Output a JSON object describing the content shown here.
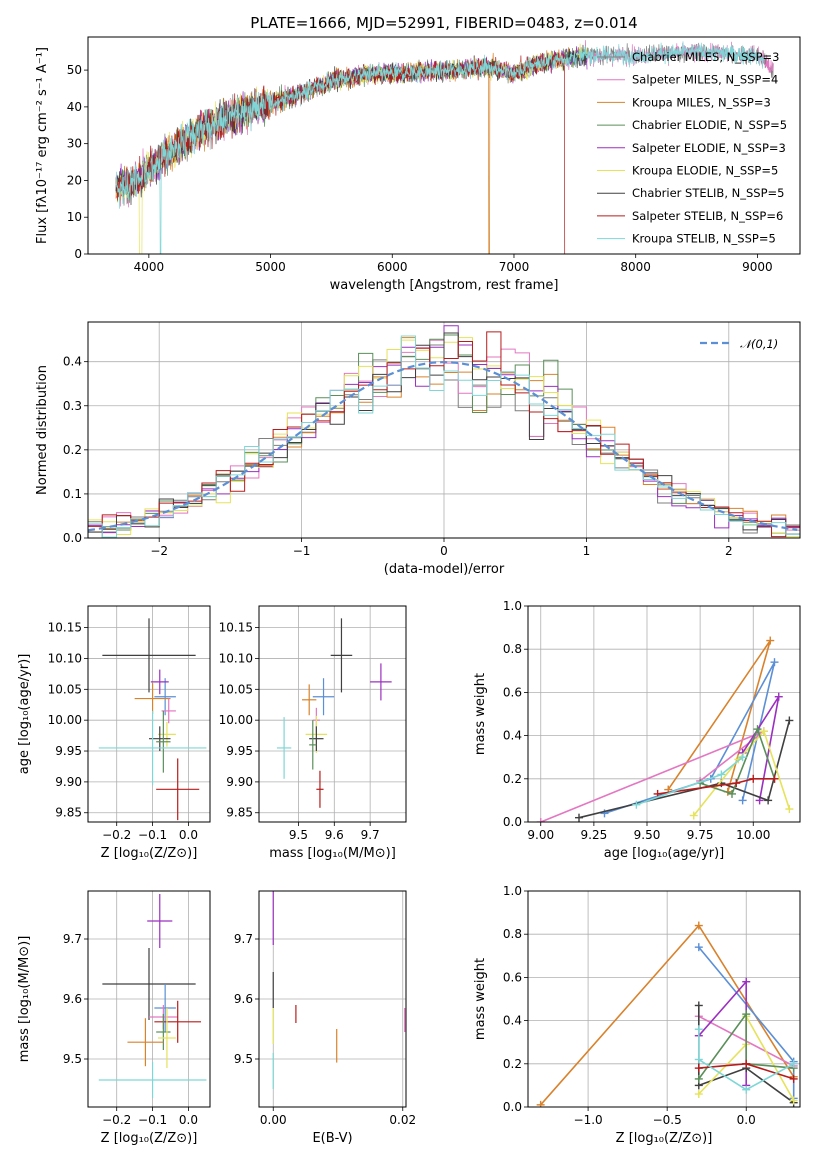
{
  "colors": [
    "#7f7f7f",
    "#e377c2",
    "#d9822b",
    "#5a8f5a",
    "#9b30c0",
    "#e6e35a",
    "#404040",
    "#b71c1c",
    "#7fd6d6"
  ],
  "gauss_color": "#5b8fd6",
  "chart_data": [
    {
      "id": "spectrum",
      "type": "line",
      "title": "PLATE=1666, MJD=52991, FIBERID=0483, z=0.014",
      "xlabel": "wavelength [Angstrom, rest frame]",
      "ylabel": "Flux [fλ10⁻¹⁷ erg cm⁻² s⁻¹ A⁻¹]",
      "xlim": [
        3500,
        9350
      ],
      "ylim": [
        0,
        59
      ],
      "xticks": [
        4000,
        5000,
        6000,
        7000,
        8000,
        9000
      ],
      "yticks": [
        0,
        10,
        20,
        30,
        40,
        50
      ],
      "grid": false,
      "legend": "top-right",
      "continuum_anchors": {
        "x": [
          3730,
          3900,
          4100,
          4400,
          4700,
          5000,
          5200,
          5500,
          5800,
          6000,
          6500,
          6800,
          7000,
          7200,
          7400,
          7600,
          8000,
          8500,
          9000,
          9130
        ],
        "y": [
          18,
          20,
          26,
          33,
          38,
          41,
          43,
          47,
          49,
          49,
          50,
          51,
          49,
          52,
          53,
          54,
          54,
          55,
          54,
          50
        ]
      },
      "series": [
        {
          "name": "Chabrier MILES, N_SSP=3"
        },
        {
          "name": "Salpeter MILES, N_SSP=4"
        },
        {
          "name": "Kroupa MILES, N_SSP=3"
        },
        {
          "name": "Chabrier ELODIE, N_SSP=5"
        },
        {
          "name": "Salpeter ELODIE, N_SSP=3"
        },
        {
          "name": "Kroupa ELODIE, N_SSP=5"
        },
        {
          "name": "Chabrier STELIB, N_SSP=5"
        },
        {
          "name": "Salpeter STELIB, N_SSP=6"
        },
        {
          "name": "Kroupa STELIB, N_SSP=5"
        }
      ]
    },
    {
      "id": "residuals",
      "type": "histogram",
      "xlabel": "(data-model)/error",
      "ylabel": "Normed distribution",
      "xlim": [
        -2.5,
        2.5
      ],
      "ylim": [
        0,
        0.49
      ],
      "xticks": [
        -2,
        -1,
        0,
        1,
        2
      ],
      "yticks": [
        0.0,
        0.1,
        0.2,
        0.3,
        0.4
      ],
      "grid": true,
      "legend": "top-right",
      "reference_label": "𝒩(0,1)",
      "bin_width": 0.1
    },
    {
      "id": "age_vs_Z",
      "type": "scatter",
      "xlabel": "Z [log₁₀(Z/Z⊙)]",
      "ylabel": "age  [log₁₀(age/yr)]",
      "xlim": [
        -0.28,
        0.06
      ],
      "ylim": [
        9.835,
        10.185
      ],
      "xticks": [
        -0.2,
        -0.1,
        0.0
      ],
      "yticks": [
        9.85,
        9.9,
        9.95,
        10.0,
        10.05,
        10.1,
        10.15
      ],
      "grid": true,
      "points": [
        {
          "x": -0.065,
          "y": 10.038,
          "xerr": 0.03,
          "yerr": 0.03,
          "color": "#5b8fd6"
        },
        {
          "x": -0.08,
          "y": 10.062,
          "xerr": 0.025,
          "yerr": 0.02,
          "color": "#9b30c0"
        },
        {
          "x": -0.1,
          "y": 10.035,
          "xerr": 0.05,
          "yerr": 0.025,
          "color": "#d9822b"
        },
        {
          "x": -0.055,
          "y": 10.015,
          "xerr": 0.02,
          "yerr": 0.02,
          "color": "#e377c2"
        },
        {
          "x": -0.06,
          "y": 9.977,
          "xerr": 0.025,
          "yerr": 0.02,
          "color": "#e6e35a"
        },
        {
          "x": -0.08,
          "y": 9.97,
          "xerr": 0.03,
          "yerr": 0.02,
          "color": "#404040"
        },
        {
          "x": -0.07,
          "y": 9.965,
          "xerr": 0.02,
          "yerr": 0.05,
          "color": "#5a8f5a"
        },
        {
          "x": -0.1,
          "y": 9.955,
          "xerr": 0.15,
          "yerr": 0.06,
          "color": "#7fd6d6"
        },
        {
          "x": -0.11,
          "y": 10.105,
          "xerr": 0.13,
          "yerr": 0.06,
          "color": "#404040"
        },
        {
          "x": -0.03,
          "y": 9.888,
          "xerr": 0.06,
          "yerr": 0.05,
          "color": "#b71c1c"
        }
      ]
    },
    {
      "id": "age_vs_mass",
      "type": "scatter",
      "xlabel": "mass [log₁₀(M/M⊙)]",
      "ylabel": "",
      "xlim": [
        9.39,
        9.8
      ],
      "ylim": [
        9.835,
        10.185
      ],
      "xticks": [
        9.5,
        9.6,
        9.7
      ],
      "yticks": [
        9.85,
        9.9,
        9.95,
        10.0,
        10.05,
        10.1,
        10.15
      ],
      "grid": true,
      "points": [
        {
          "x": 9.57,
          "y": 10.038,
          "xerr": 0.03,
          "yerr": 0.03,
          "color": "#5b8fd6"
        },
        {
          "x": 9.73,
          "y": 10.062,
          "xerr": 0.03,
          "yerr": 0.03,
          "color": "#9b30c0"
        },
        {
          "x": 9.53,
          "y": 10.033,
          "xerr": 0.02,
          "yerr": 0.025,
          "color": "#d9822b"
        },
        {
          "x": 9.55,
          "y": 10.0,
          "xerr": 0.01,
          "yerr": 0.02,
          "color": "#e377c2"
        },
        {
          "x": 9.55,
          "y": 9.977,
          "xerr": 0.03,
          "yerr": 0.03,
          "color": "#e6e35a"
        },
        {
          "x": 9.55,
          "y": 9.97,
          "xerr": 0.02,
          "yerr": 0.02,
          "color": "#404040"
        },
        {
          "x": 9.54,
          "y": 9.96,
          "xerr": 0.01,
          "yerr": 0.04,
          "color": "#5a8f5a"
        },
        {
          "x": 9.46,
          "y": 9.955,
          "xerr": 0.02,
          "yerr": 0.05,
          "color": "#7fd6d6"
        },
        {
          "x": 9.62,
          "y": 10.105,
          "xerr": 0.03,
          "yerr": 0.06,
          "color": "#404040"
        },
        {
          "x": 9.56,
          "y": 9.888,
          "xerr": 0.01,
          "yerr": 0.03,
          "color": "#b71c1c"
        }
      ]
    },
    {
      "id": "weight_vs_age",
      "type": "line",
      "xlabel": "age  [log₁₀(age/yr)]",
      "ylabel": "mass weight",
      "xlim": [
        8.94,
        10.22
      ],
      "ylim": [
        0.0,
        1.0
      ],
      "xticks": [
        9.0,
        9.25,
        9.5,
        9.75,
        10.0
      ],
      "yticks": [
        0.0,
        0.2,
        0.4,
        0.6,
        0.8,
        1.0
      ],
      "grid": true,
      "series": [
        {
          "color": "#d9822b",
          "x": [
            9.6,
            10.08,
            9.88
          ],
          "y": [
            0.15,
            0.84,
            0.14
          ]
        },
        {
          "color": "#5b8fd6",
          "x": [
            9.3,
            9.8,
            10.1,
            9.95
          ],
          "y": [
            0.04,
            0.2,
            0.74,
            0.1
          ]
        },
        {
          "color": "#e377c2",
          "x": [
            9.0,
            10.05,
            9.75
          ],
          "y": [
            0.0,
            0.42,
            0.19
          ]
        },
        {
          "color": "#9b30c0",
          "x": [
            9.95,
            10.12,
            10.03
          ],
          "y": [
            0.32,
            0.58,
            0.1
          ]
        },
        {
          "color": "#404040",
          "x": [
            9.18,
            9.85,
            10.07,
            10.17
          ],
          "y": [
            0.02,
            0.18,
            0.1,
            0.47
          ]
        },
        {
          "color": "#e6e35a",
          "x": [
            9.72,
            9.93,
            10.05,
            10.17
          ],
          "y": [
            0.03,
            0.29,
            0.42,
            0.06
          ]
        },
        {
          "color": "#5a8f5a",
          "x": [
            9.75,
            9.9,
            10.02,
            10.1
          ],
          "y": [
            0.18,
            0.13,
            0.43,
            0.2
          ]
        },
        {
          "color": "#b71c1c",
          "x": [
            9.55,
            9.92,
            10.0,
            10.1
          ],
          "y": [
            0.13,
            0.18,
            0.2,
            0.2
          ]
        },
        {
          "color": "#7fd6d6",
          "x": [
            9.45,
            9.85,
            9.95
          ],
          "y": [
            0.08,
            0.22,
            0.3
          ]
        }
      ]
    },
    {
      "id": "mass_vs_Z",
      "type": "scatter",
      "xlabel": "Z [log₁₀(Z/Z⊙)]",
      "ylabel": "mass [log₁₀(M/M⊙)]",
      "xlim": [
        -0.28,
        0.06
      ],
      "ylim": [
        9.42,
        9.78
      ],
      "xticks": [
        -0.2,
        -0.1,
        0.0
      ],
      "yticks": [
        9.5,
        9.6,
        9.7
      ],
      "grid": true,
      "points": [
        {
          "x": -0.08,
          "y": 9.73,
          "xerr": 0.035,
          "yerr": 0.045,
          "color": "#9b30c0"
        },
        {
          "x": -0.11,
          "y": 9.625,
          "xerr": 0.13,
          "yerr": 0.06,
          "color": "#404040"
        },
        {
          "x": -0.065,
          "y": 9.585,
          "xerr": 0.03,
          "yerr": 0.04,
          "color": "#5b8fd6"
        },
        {
          "x": -0.07,
          "y": 9.57,
          "xerr": 0.04,
          "yerr": 0.02,
          "color": "#e377c2"
        },
        {
          "x": -0.03,
          "y": 9.562,
          "xerr": 0.065,
          "yerr": 0.035,
          "color": "#b71c1c"
        },
        {
          "x": -0.07,
          "y": 9.545,
          "xerr": 0.02,
          "yerr": 0.03,
          "color": "#5a8f5a"
        },
        {
          "x": -0.06,
          "y": 9.535,
          "xerr": 0.025,
          "yerr": 0.05,
          "color": "#e6e35a"
        },
        {
          "x": -0.12,
          "y": 9.528,
          "xerr": 0.05,
          "yerr": 0.04,
          "color": "#d9822b"
        },
        {
          "x": -0.1,
          "y": 9.465,
          "xerr": 0.15,
          "yerr": 0.03,
          "color": "#7fd6d6"
        }
      ]
    },
    {
      "id": "mass_vs_ebv",
      "type": "scatter",
      "xlabel": "E(B-V)",
      "ylabel": "",
      "xlim": [
        -0.0022,
        0.0205
      ],
      "ylim": [
        9.42,
        9.78
      ],
      "xticks": [
        0.0,
        0.02
      ],
      "yticks": [
        9.5,
        9.6,
        9.7
      ],
      "grid": true,
      "points": [
        {
          "x": 0.0,
          "y": 9.735,
          "xerr": 0,
          "yerr": 0.045,
          "color": "#9b30c0"
        },
        {
          "x": 0.0,
          "y": 9.615,
          "xerr": 0,
          "yerr": 0.03,
          "color": "#404040"
        },
        {
          "x": 0.0,
          "y": 9.555,
          "xerr": 0,
          "yerr": 0.03,
          "color": "#e6e35a"
        },
        {
          "x": 0.0,
          "y": 9.48,
          "xerr": 0,
          "yerr": 0.03,
          "color": "#7fd6d6"
        },
        {
          "x": 0.0035,
          "y": 9.575,
          "xerr": 0,
          "yerr": 0.015,
          "color": "#b71c1c"
        },
        {
          "x": 0.0098,
          "y": 9.522,
          "xerr": 0,
          "yerr": 0.028,
          "color": "#d9822b"
        },
        {
          "x": 0.0203,
          "y": 9.565,
          "xerr": 0,
          "yerr": 0.02,
          "color": "#e377c2"
        }
      ]
    },
    {
      "id": "weight_vs_Z",
      "type": "line",
      "xlabel": "Z [log₁₀(Z/Z⊙)]",
      "ylabel": "mass weight",
      "xlim": [
        -1.38,
        0.34
      ],
      "ylim": [
        0.0,
        1.0
      ],
      "xticks": [
        -1.0,
        -0.5,
        0.0
      ],
      "yticks": [
        0.0,
        0.2,
        0.4,
        0.6,
        0.8,
        1.0
      ],
      "grid": true,
      "series": [
        {
          "color": "#d9822b",
          "x": [
            -1.3,
            -0.3,
            0.3
          ],
          "y": [
            0.01,
            0.84,
            0.14
          ]
        },
        {
          "color": "#5b8fd6",
          "x": [
            -0.3,
            0.3,
            0.3
          ],
          "y": [
            0.74,
            0.21,
            0.04
          ]
        },
        {
          "color": "#e377c2",
          "x": [
            -0.3,
            0.3
          ],
          "y": [
            0.42,
            0.19
          ]
        },
        {
          "color": "#9b30c0",
          "x": [
            -0.3,
            0.0,
            0.0
          ],
          "y": [
            0.33,
            0.58,
            0.1
          ]
        },
        {
          "color": "#404040",
          "x": [
            -0.3,
            -0.3,
            0.0,
            0.3
          ],
          "y": [
            0.47,
            0.1,
            0.18,
            0.02
          ]
        },
        {
          "color": "#e6e35a",
          "x": [
            -0.3,
            0.0,
            0.0,
            0.3
          ],
          "y": [
            0.06,
            0.29,
            0.42,
            0.03
          ]
        },
        {
          "color": "#5a8f5a",
          "x": [
            -0.3,
            0.0,
            0.0,
            0.3
          ],
          "y": [
            0.13,
            0.43,
            0.2,
            0.18
          ]
        },
        {
          "color": "#b71c1c",
          "x": [
            -0.3,
            0.0,
            0.3
          ],
          "y": [
            0.18,
            0.2,
            0.13
          ]
        },
        {
          "color": "#7fd6d6",
          "x": [
            -0.3,
            -0.3,
            0.0,
            0.3
          ],
          "y": [
            0.36,
            0.22,
            0.08,
            0.2
          ]
        }
      ]
    }
  ]
}
